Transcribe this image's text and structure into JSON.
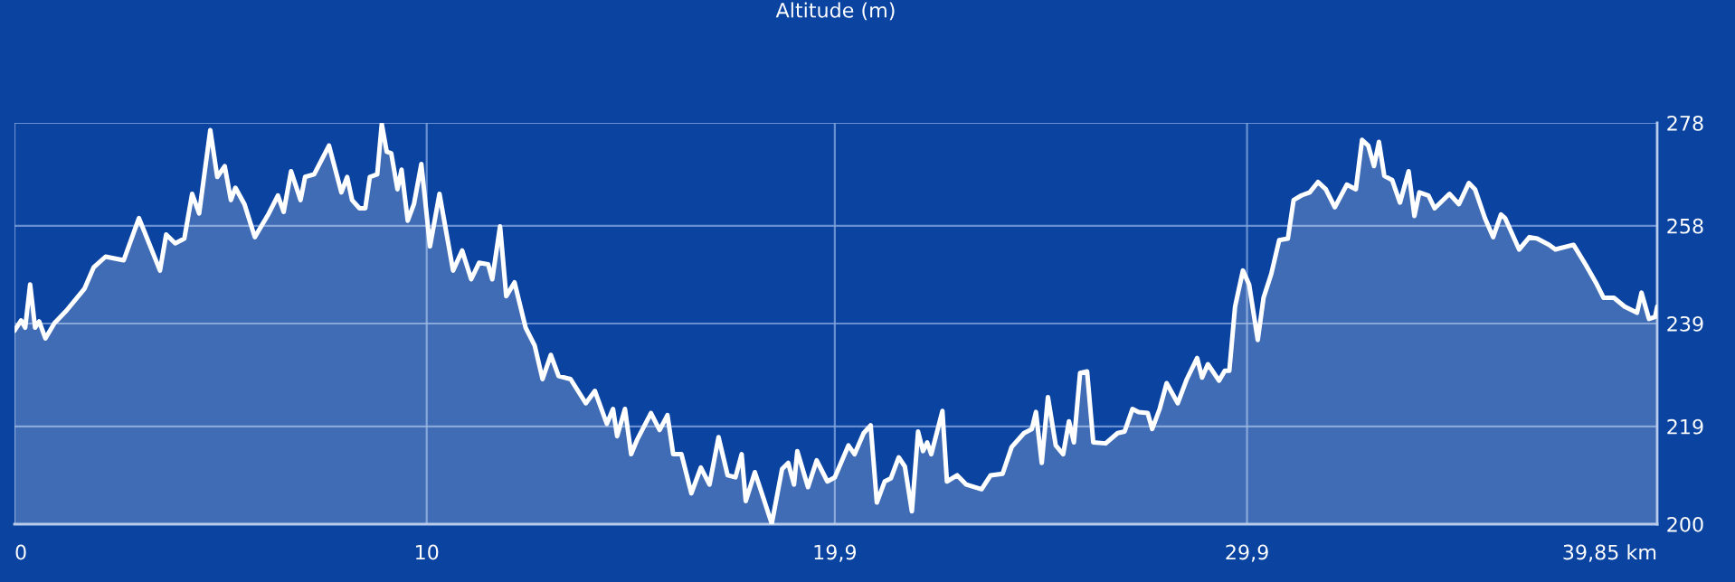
{
  "chart_data": {
    "type": "area",
    "title": "Altitude (m)",
    "series": [
      {
        "color": "#ffffff",
        "x": [
          0.0,
          0.16,
          0.26,
          0.38,
          0.5,
          0.6,
          0.75,
          0.97,
          1.26,
          1.7,
          1.92,
          2.21,
          2.65,
          3.02,
          3.53,
          3.68,
          3.9,
          4.12,
          4.31,
          4.48,
          4.75,
          4.92,
          5.1,
          5.25,
          5.36,
          5.58,
          5.83,
          6.17,
          6.39,
          6.53,
          6.71,
          6.94,
          7.05,
          7.27,
          7.63,
          7.93,
          8.07,
          8.19,
          8.37,
          8.51,
          8.62,
          8.8,
          8.91,
          9.03,
          9.14,
          9.29,
          9.39,
          9.54,
          9.69,
          9.87,
          10.08,
          10.31,
          10.64,
          10.86,
          11.08,
          11.27,
          11.49,
          11.59,
          11.78,
          11.93,
          12.13,
          12.4,
          12.62,
          12.81,
          13.01,
          13.2,
          13.49,
          13.86,
          14.08,
          14.37,
          14.52,
          14.62,
          14.81,
          14.96,
          15.11,
          15.44,
          15.65,
          15.84,
          15.98,
          16.18,
          16.42,
          16.65,
          16.86,
          17.08,
          17.3,
          17.49,
          17.64,
          17.74,
          17.96,
          18.18,
          18.37,
          18.62,
          18.77,
          18.91,
          18.99,
          19.25,
          19.46,
          19.72,
          19.9,
          20.23,
          20.38,
          20.6,
          20.77,
          20.92,
          21.11,
          21.26,
          21.45,
          21.6,
          21.77,
          21.92,
          22.04,
          22.14,
          22.24,
          22.51,
          22.62,
          22.87,
          23.09,
          23.46,
          23.68,
          23.97,
          24.19,
          24.49,
          24.68,
          24.78,
          24.92,
          25.07,
          25.26,
          25.44,
          25.58,
          25.7,
          25.85,
          26.02,
          26.17,
          26.47,
          26.76,
          26.93,
          27.12,
          27.27,
          27.49,
          27.6,
          27.78,
          27.95,
          28.22,
          28.44,
          28.69,
          28.81,
          28.95,
          29.22,
          29.36,
          29.47,
          29.61,
          29.8,
          29.95,
          30.16,
          30.3,
          30.49,
          30.68,
          30.89,
          31.03,
          31.22,
          31.42,
          31.62,
          31.81,
          32.03,
          32.32,
          32.54,
          32.69,
          32.84,
          32.98,
          33.1,
          33.23,
          33.42,
          33.61,
          33.82,
          33.96,
          34.08,
          34.3,
          34.45,
          34.81,
          35.04,
          35.28,
          35.43,
          35.67,
          35.87,
          36.06,
          36.16,
          36.5,
          36.75,
          36.94,
          37.23,
          37.38,
          37.82,
          38.11,
          38.36,
          38.55,
          38.8,
          39.06,
          39.36,
          39.47,
          39.65,
          39.8,
          39.85
        ],
        "values": [
          237.6,
          239.6,
          238.2,
          246.6,
          238.2,
          239.4,
          236.1,
          239.1,
          241.5,
          245.8,
          249.9,
          252,
          251.3,
          259.5,
          249.3,
          256.3,
          254.6,
          255.5,
          264.2,
          260.4,
          276.6,
          267.5,
          269.6,
          263,
          265.4,
          262.2,
          255.8,
          260.4,
          263.9,
          260.7,
          268.6,
          263,
          267.5,
          268,
          273.6,
          264.5,
          267.5,
          263,
          261.4,
          261.4,
          267.5,
          268,
          277.8,
          272.4,
          272.1,
          265.1,
          268.9,
          259,
          262.2,
          270,
          254,
          264.2,
          249.3,
          253.2,
          247.6,
          250.8,
          250.5,
          247.6,
          257.9,
          244.3,
          247,
          238.2,
          234.7,
          228.2,
          232.9,
          228.8,
          228.2,
          223.5,
          225.9,
          219.5,
          222.4,
          217.1,
          222.4,
          213.6,
          216.5,
          221.6,
          218.3,
          221.2,
          213.6,
          213.6,
          206,
          211,
          207.7,
          216.9,
          209.5,
          209.1,
          213.6,
          204.5,
          210.1,
          204.8,
          200.1,
          210.7,
          211.9,
          207.7,
          214.2,
          207.2,
          212.4,
          208.3,
          209.1,
          215.3,
          213.6,
          217.7,
          219.2,
          204.2,
          208.3,
          208.9,
          213,
          211.2,
          202.5,
          218,
          214.2,
          215.9,
          213.6,
          222,
          208.3,
          209.5,
          207.7,
          206.8,
          209.5,
          209.8,
          215,
          217.7,
          218.5,
          221.8,
          211.9,
          224.7,
          215.3,
          213.6,
          220,
          215.9,
          229.4,
          229.7,
          215.9,
          215.7,
          217.7,
          218,
          222.4,
          221.8,
          221.6,
          218.5,
          222.4,
          227.4,
          223.5,
          228.2,
          232.3,
          228.5,
          231.1,
          227.9,
          229.8,
          229.8,
          242.3,
          249.3,
          246.6,
          235.8,
          244,
          248.7,
          255.2,
          255.5,
          263,
          263.9,
          264.5,
          266.5,
          265.1,
          261.6,
          266,
          265.1,
          274.7,
          273.6,
          269.6,
          274.3,
          267.7,
          266.9,
          262.5,
          268.6,
          259.9,
          264.5,
          263.9,
          261.4,
          264.2,
          262.2,
          266.3,
          265.1,
          259.5,
          255.8,
          260.2,
          259.5,
          253.4,
          255.8,
          255.5,
          254.3,
          253.4,
          254.3,
          250.5,
          247,
          244,
          244,
          242.3,
          241.1,
          245,
          239.9,
          240.3,
          242.3
        ]
      }
    ],
    "xlim": [
      0,
      39.85
    ],
    "ylim": [
      200,
      278
    ],
    "xticks": [
      0,
      10,
      {
        "value": 19.9,
        "label": "19,9"
      },
      {
        "value": 29.9,
        "label": "29,9"
      },
      {
        "value": 39.85,
        "label": "39,85 km"
      }
    ],
    "yticks": [
      200,
      219,
      239,
      258,
      278
    ],
    "grid": true,
    "legend": false
  }
}
